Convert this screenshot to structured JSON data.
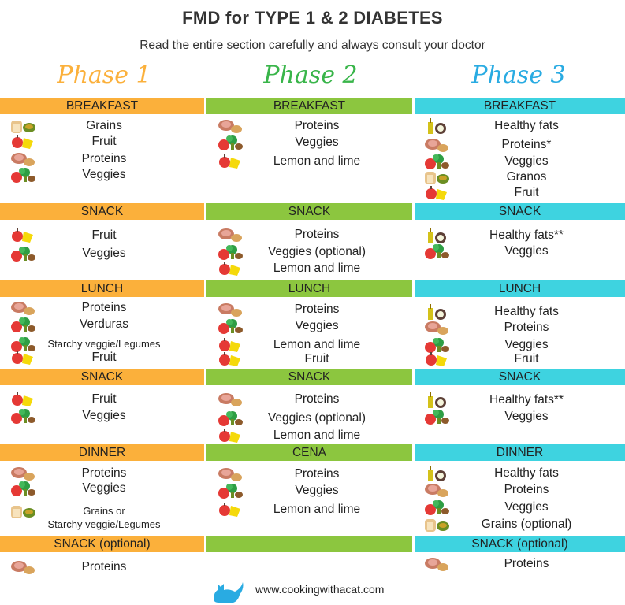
{
  "title": "FMD for TYPE 1 & 2 DIABETES",
  "subtitle": "Read the entire section carefully and always consult your doctor",
  "phases": [
    {
      "label": "Phase 1",
      "color": "#fbb03b"
    },
    {
      "label": "Phase 2",
      "color": "#39b54a"
    },
    {
      "label": "Phase 3",
      "color": "#29abe2"
    }
  ],
  "columns": [
    {
      "meals": [
        {
          "label": "BREAKFAST",
          "items": [
            "Grains",
            "Fruit",
            "Proteins",
            "Veggies"
          ]
        },
        {
          "label": "SNACK",
          "items": [
            "Fruit",
            "Veggies"
          ]
        },
        {
          "label": "LUNCH",
          "items": [
            "Proteins",
            "Verduras",
            "Starchy veggie/Legumes",
            "Fruit"
          ]
        },
        {
          "label": "SNACK",
          "items": [
            "Fruit",
            "Veggies"
          ]
        },
        {
          "label": "DINNER",
          "items": [
            "Proteins",
            "Veggies",
            "Grains or",
            "Starchy veggie/Legumes"
          ]
        },
        {
          "label": "SNACK (optional)",
          "items": [
            "Proteins"
          ]
        }
      ]
    },
    {
      "meals": [
        {
          "label": "BREAKFAST",
          "items": [
            "Proteins",
            "Veggies",
            "Lemon and lime"
          ]
        },
        {
          "label": "SNACK",
          "items": [
            "Proteins",
            "Veggies (optional)",
            "Lemon and lime"
          ]
        },
        {
          "label": "LUNCH",
          "items": [
            "Proteins",
            "Veggies",
            "Lemon and lime",
            "Fruit"
          ]
        },
        {
          "label": "SNACK",
          "items": [
            "Proteins",
            "Veggies (optional)",
            "Lemon and lime"
          ]
        },
        {
          "label": "CENA",
          "items": [
            "Proteins",
            "Veggies",
            "Lemon and lime"
          ]
        },
        {
          "label": "",
          "items": []
        }
      ]
    },
    {
      "meals": [
        {
          "label": "BREAKFAST",
          "items": [
            "Healthy fats",
            "Proteins*",
            "Veggies",
            "Granos",
            "Fruit"
          ]
        },
        {
          "label": "SNACK",
          "items": [
            "Healthy fats**",
            "Veggies"
          ]
        },
        {
          "label": "LUNCH",
          "items": [
            "Healthy fats",
            "Proteins",
            "Veggies",
            "Fruit"
          ]
        },
        {
          "label": "SNACK",
          "items": [
            "Healthy fats**",
            "Veggies"
          ]
        },
        {
          "label": "DINNER",
          "items": [
            "Healthy fats",
            "Proteins",
            "Veggies",
            "Grains (optional)"
          ]
        },
        {
          "label": "SNACK (optional)",
          "items": [
            "Proteins"
          ]
        }
      ]
    }
  ],
  "footer": "www.cookingwithacat.com"
}
